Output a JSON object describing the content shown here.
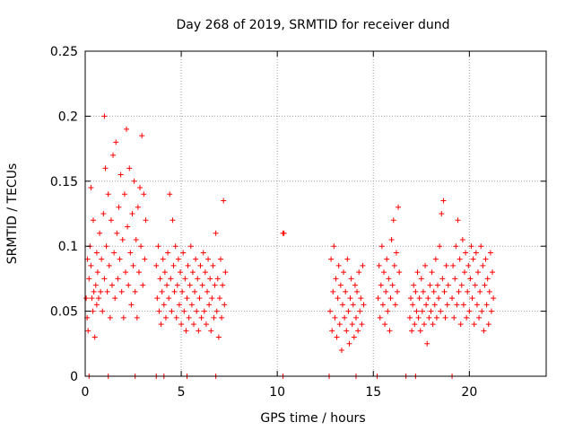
{
  "chart_data": {
    "type": "scatter",
    "title": "Day 268 of 2019, SRMTID for receiver dund",
    "xlabel": "GPS time / hours",
    "ylabel": "SRMTID / TECUs",
    "xlim": [
      0,
      24
    ],
    "ylim": [
      0,
      0.25
    ],
    "xticks": [
      0,
      5,
      10,
      15,
      20
    ],
    "yticks": [
      0,
      0.05,
      0.1,
      0.15,
      0.2,
      0.25
    ],
    "ytick_labels": [
      "0",
      "0.05",
      "0.1",
      "0.15",
      "0.2",
      "0.25"
    ],
    "grid": true,
    "marker": "+",
    "color": "#ff0000",
    "series": [
      {
        "name": "SRMTID",
        "points": [
          [
            0.05,
            0.06
          ],
          [
            0.1,
            0.045
          ],
          [
            0.12,
            0.09
          ],
          [
            0.15,
            0.035
          ],
          [
            0.2,
            0.075
          ],
          [
            0.25,
            0.1
          ],
          [
            0.3,
            0.085
          ],
          [
            0.3,
            0.145
          ],
          [
            0.35,
            0.06
          ],
          [
            0.4,
            0.05
          ],
          [
            0.42,
            0.12
          ],
          [
            0.45,
            0.065
          ],
          [
            0.5,
            0.03
          ],
          [
            0.55,
            0.07
          ],
          [
            0.6,
            0.095
          ],
          [
            0.6,
            0.055
          ],
          [
            0.65,
            0.08
          ],
          [
            0.7,
            0.06
          ],
          [
            0.75,
            0.11
          ],
          [
            0.8,
            0.065
          ],
          [
            0.85,
            0.09
          ],
          [
            0.9,
            0.05
          ],
          [
            0.95,
            0.125
          ],
          [
            1.0,
            0.075
          ],
          [
            1.0,
            0.2
          ],
          [
            1.05,
            0.16
          ],
          [
            1.1,
            0.1
          ],
          [
            1.15,
            0.065
          ],
          [
            1.2,
            0.14
          ],
          [
            1.25,
            0.085
          ],
          [
            1.3,
            0.045
          ],
          [
            1.35,
            0.12
          ],
          [
            1.4,
            0.07
          ],
          [
            1.45,
            0.17
          ],
          [
            1.5,
            0.095
          ],
          [
            1.55,
            0.06
          ],
          [
            1.6,
            0.18
          ],
          [
            1.65,
            0.11
          ],
          [
            1.7,
            0.075
          ],
          [
            1.75,
            0.13
          ],
          [
            1.8,
            0.09
          ],
          [
            1.85,
            0.155
          ],
          [
            1.9,
            0.065
          ],
          [
            1.95,
            0.105
          ],
          [
            2.0,
            0.045
          ],
          [
            2.05,
            0.14
          ],
          [
            2.1,
            0.08
          ],
          [
            2.15,
            0.19
          ],
          [
            2.2,
            0.115
          ],
          [
            2.25,
            0.07
          ],
          [
            2.3,
            0.16
          ],
          [
            2.35,
            0.095
          ],
          [
            2.4,
            0.055
          ],
          [
            2.45,
            0.125
          ],
          [
            2.5,
            0.085
          ],
          [
            2.55,
            0.15
          ],
          [
            2.6,
            0.065
          ],
          [
            2.65,
            0.105
          ],
          [
            2.7,
            0.045
          ],
          [
            2.75,
            0.13
          ],
          [
            2.8,
            0.08
          ],
          [
            2.85,
            0.145
          ],
          [
            2.9,
            0.1
          ],
          [
            2.95,
            0.185
          ],
          [
            3.0,
            0.07
          ],
          [
            3.05,
            0.14
          ],
          [
            3.1,
            0.09
          ],
          [
            3.15,
            0.12
          ],
          [
            3.7,
            0.085
          ],
          [
            3.75,
            0.06
          ],
          [
            3.8,
            0.1
          ],
          [
            3.85,
            0.05
          ],
          [
            3.9,
            0.075
          ],
          [
            3.95,
            0.04
          ],
          [
            4.0,
            0.065
          ],
          [
            4.05,
            0.09
          ],
          [
            4.1,
            0.055
          ],
          [
            4.15,
            0.08
          ],
          [
            4.2,
            0.045
          ],
          [
            4.25,
            0.07
          ],
          [
            4.3,
            0.095
          ],
          [
            4.35,
            0.06
          ],
          [
            4.4,
            0.14
          ],
          [
            4.45,
            0.075
          ],
          [
            4.5,
            0.05
          ],
          [
            4.55,
            0.12
          ],
          [
            4.6,
            0.085
          ],
          [
            4.65,
            0.065
          ],
          [
            4.7,
            0.1
          ],
          [
            4.75,
            0.045
          ],
          [
            4.8,
            0.07
          ],
          [
            4.85,
            0.09
          ],
          [
            4.9,
            0.055
          ],
          [
            4.95,
            0.08
          ],
          [
            5.0,
            0.04
          ],
          [
            5.05,
            0.065
          ],
          [
            5.1,
            0.095
          ],
          [
            5.15,
            0.05
          ],
          [
            5.2,
            0.075
          ],
          [
            5.25,
            0.035
          ],
          [
            5.3,
            0.06
          ],
          [
            5.35,
            0.085
          ],
          [
            5.4,
            0.045
          ],
          [
            5.45,
            0.07
          ],
          [
            5.5,
            0.1
          ],
          [
            5.55,
            0.055
          ],
          [
            5.6,
            0.08
          ],
          [
            5.65,
            0.04
          ],
          [
            5.7,
            0.065
          ],
          [
            5.75,
            0.09
          ],
          [
            5.8,
            0.05
          ],
          [
            5.85,
            0.075
          ],
          [
            5.9,
            0.035
          ],
          [
            5.95,
            0.06
          ],
          [
            6.0,
            0.085
          ],
          [
            6.05,
            0.045
          ],
          [
            6.1,
            0.07
          ],
          [
            6.15,
            0.095
          ],
          [
            6.2,
            0.05
          ],
          [
            6.25,
            0.08
          ],
          [
            6.3,
            0.04
          ],
          [
            6.35,
            0.065
          ],
          [
            6.4,
            0.09
          ],
          [
            6.45,
            0.055
          ],
          [
            6.5,
            0.075
          ],
          [
            6.55,
            0.035
          ],
          [
            6.6,
            0.06
          ],
          [
            6.65,
            0.085
          ],
          [
            6.7,
            0.045
          ],
          [
            6.75,
            0.07
          ],
          [
            6.8,
            0.11
          ],
          [
            6.85,
            0.05
          ],
          [
            6.9,
            0.075
          ],
          [
            6.95,
            0.03
          ],
          [
            7.0,
            0.06
          ],
          [
            7.05,
            0.09
          ],
          [
            7.1,
            0.045
          ],
          [
            7.15,
            0.07
          ],
          [
            7.2,
            0.135
          ],
          [
            7.25,
            0.055
          ],
          [
            7.3,
            0.08
          ],
          [
            10.3,
            0.11
          ],
          [
            10.35,
            0.11
          ],
          [
            12.75,
            0.05
          ],
          [
            12.8,
            0.09
          ],
          [
            12.85,
            0.035
          ],
          [
            12.9,
            0.065
          ],
          [
            12.95,
            0.1
          ],
          [
            13.0,
            0.045
          ],
          [
            13.05,
            0.075
          ],
          [
            13.1,
            0.03
          ],
          [
            13.15,
            0.06
          ],
          [
            13.2,
            0.085
          ],
          [
            13.25,
            0.04
          ],
          [
            13.3,
            0.07
          ],
          [
            13.35,
            0.02
          ],
          [
            13.4,
            0.055
          ],
          [
            13.45,
            0.08
          ],
          [
            13.5,
            0.045
          ],
          [
            13.55,
            0.065
          ],
          [
            13.6,
            0.035
          ],
          [
            13.65,
            0.09
          ],
          [
            13.7,
            0.05
          ],
          [
            13.75,
            0.025
          ],
          [
            13.8,
            0.06
          ],
          [
            13.85,
            0.075
          ],
          [
            13.9,
            0.04
          ],
          [
            13.95,
            0.055
          ],
          [
            14.0,
            0.03
          ],
          [
            14.05,
            0.07
          ],
          [
            14.1,
            0.045
          ],
          [
            14.15,
            0.065
          ],
          [
            14.2,
            0.035
          ],
          [
            14.25,
            0.08
          ],
          [
            14.3,
            0.05
          ],
          [
            14.35,
            0.06
          ],
          [
            14.4,
            0.04
          ],
          [
            14.45,
            0.085
          ],
          [
            14.5,
            0.055
          ],
          [
            15.25,
            0.06
          ],
          [
            15.3,
            0.085
          ],
          [
            15.35,
            0.045
          ],
          [
            15.4,
            0.07
          ],
          [
            15.45,
            0.1
          ],
          [
            15.5,
            0.055
          ],
          [
            15.55,
            0.08
          ],
          [
            15.6,
            0.04
          ],
          [
            15.65,
            0.065
          ],
          [
            15.7,
            0.09
          ],
          [
            15.75,
            0.05
          ],
          [
            15.8,
            0.075
          ],
          [
            15.85,
            0.035
          ],
          [
            15.9,
            0.06
          ],
          [
            15.95,
            0.105
          ],
          [
            16.0,
            0.07
          ],
          [
            16.05,
            0.12
          ],
          [
            16.1,
            0.085
          ],
          [
            16.15,
            0.055
          ],
          [
            16.2,
            0.095
          ],
          [
            16.25,
            0.065
          ],
          [
            16.3,
            0.13
          ],
          [
            16.35,
            0.08
          ],
          [
            16.9,
            0.045
          ],
          [
            16.95,
            0.06
          ],
          [
            17.0,
            0.035
          ],
          [
            17.05,
            0.055
          ],
          [
            17.1,
            0.07
          ],
          [
            17.15,
            0.04
          ],
          [
            17.2,
            0.065
          ],
          [
            17.25,
            0.05
          ],
          [
            17.3,
            0.08
          ],
          [
            17.35,
            0.045
          ],
          [
            17.4,
            0.06
          ],
          [
            17.45,
            0.035
          ],
          [
            17.5,
            0.075
          ],
          [
            17.55,
            0.05
          ],
          [
            17.6,
            0.065
          ],
          [
            17.65,
            0.04
          ],
          [
            17.7,
            0.085
          ],
          [
            17.75,
            0.055
          ],
          [
            17.8,
            0.025
          ],
          [
            17.85,
            0.06
          ],
          [
            17.9,
            0.045
          ],
          [
            17.95,
            0.07
          ],
          [
            18.0,
            0.05
          ],
          [
            18.05,
            0.08
          ],
          [
            18.1,
            0.04
          ],
          [
            18.15,
            0.065
          ],
          [
            18.2,
            0.055
          ],
          [
            18.25,
            0.09
          ],
          [
            18.3,
            0.045
          ],
          [
            18.35,
            0.07
          ],
          [
            18.4,
            0.06
          ],
          [
            18.45,
            0.1
          ],
          [
            18.5,
            0.05
          ],
          [
            18.55,
            0.125
          ],
          [
            18.6,
            0.075
          ],
          [
            18.65,
            0.135
          ],
          [
            18.7,
            0.065
          ],
          [
            18.75,
            0.045
          ],
          [
            18.8,
            0.085
          ],
          [
            18.85,
            0.055
          ],
          [
            18.9,
            0.07
          ],
          [
            19.1,
            0.06
          ],
          [
            19.15,
            0.085
          ],
          [
            19.2,
            0.045
          ],
          [
            19.25,
            0.075
          ],
          [
            19.3,
            0.1
          ],
          [
            19.35,
            0.055
          ],
          [
            19.4,
            0.12
          ],
          [
            19.45,
            0.065
          ],
          [
            19.5,
            0.09
          ],
          [
            19.55,
            0.04
          ],
          [
            19.6,
            0.07
          ],
          [
            19.65,
            0.105
          ],
          [
            19.7,
            0.055
          ],
          [
            19.75,
            0.08
          ],
          [
            19.8,
            0.095
          ],
          [
            19.85,
            0.045
          ],
          [
            19.9,
            0.065
          ],
          [
            19.95,
            0.085
          ],
          [
            20.0,
            0.05
          ],
          [
            20.05,
            0.075
          ],
          [
            20.1,
            0.1
          ],
          [
            20.15,
            0.06
          ],
          [
            20.2,
            0.09
          ],
          [
            20.25,
            0.04
          ],
          [
            20.3,
            0.07
          ],
          [
            20.35,
            0.095
          ],
          [
            20.4,
            0.055
          ],
          [
            20.45,
            0.08
          ],
          [
            20.5,
            0.045
          ],
          [
            20.55,
            0.065
          ],
          [
            20.6,
            0.1
          ],
          [
            20.65,
            0.05
          ],
          [
            20.7,
            0.085
          ],
          [
            20.75,
            0.035
          ],
          [
            20.8,
            0.07
          ],
          [
            20.85,
            0.09
          ],
          [
            20.9,
            0.055
          ],
          [
            20.95,
            0.075
          ],
          [
            21.0,
            0.04
          ],
          [
            21.05,
            0.065
          ],
          [
            21.1,
            0.095
          ],
          [
            21.15,
            0.05
          ],
          [
            21.2,
            0.08
          ],
          [
            21.25,
            0.06
          ]
        ]
      }
    ],
    "baseline_x": [
      0.2,
      1.2,
      2.6,
      3.7,
      4.1,
      5.3,
      6.8,
      10.3,
      12.7,
      14.1,
      15.2,
      16.7,
      17.2,
      19.1
    ]
  }
}
